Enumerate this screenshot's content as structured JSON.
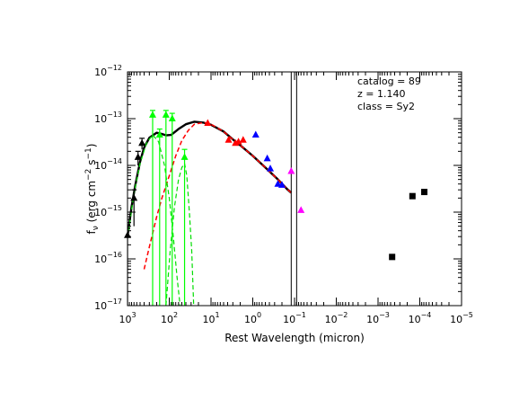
{
  "chart_data": {
    "type": "scatter",
    "title": "",
    "xlabel": "Rest Wavelength (micron)",
    "ylabel_parts": {
      "prefix": "f",
      "sub": "ν",
      "mid": " (erg cm",
      "sup1": "−2",
      "mid2": " s",
      "sup2": "−1",
      "suffix": ")"
    },
    "x_scale": "log-reversed",
    "y_scale": "log",
    "xlim": [
      1000,
      1e-05
    ],
    "ylim": [
      1e-17,
      1e-12
    ],
    "x_ticks": [
      {
        "value": 1000,
        "base": "10",
        "exp": "3"
      },
      {
        "value": 100,
        "base": "10",
        "exp": "2"
      },
      {
        "value": 10,
        "base": "10",
        "exp": "1"
      },
      {
        "value": 1,
        "base": "10",
        "exp": "0"
      },
      {
        "value": 0.1,
        "base": "10",
        "exp": "−1"
      },
      {
        "value": 0.01,
        "base": "10",
        "exp": "−2"
      },
      {
        "value": 0.001,
        "base": "10",
        "exp": "−3"
      },
      {
        "value": 0.0001,
        "base": "10",
        "exp": "−4"
      },
      {
        "value": 1e-05,
        "base": "10",
        "exp": "−5"
      }
    ],
    "y_ticks": [
      {
        "value": 1e-17,
        "base": "10",
        "exp": "−17"
      },
      {
        "value": 1e-16,
        "base": "10",
        "exp": "−16"
      },
      {
        "value": 1e-15,
        "base": "10",
        "exp": "−15"
      },
      {
        "value": 1e-14,
        "base": "10",
        "exp": "−14"
      },
      {
        "value": 1e-13,
        "base": "10",
        "exp": "−13"
      },
      {
        "value": 1e-12,
        "base": "10",
        "exp": "−12"
      }
    ],
    "annotations": [
      "catalog =  89",
      "z = 1.140",
      "class = Sy2"
    ],
    "vertical_lines": [
      0.12,
      0.089
    ],
    "series": [
      {
        "color": "#000000",
        "marker": "triangle",
        "points": [
          [
            999,
            3.2e-16
          ],
          [
            700,
            2e-15
          ],
          [
            560,
            1.5e-14
          ],
          [
            450,
            3e-14
          ]
        ],
        "errors_low": [
          1e-17,
          5e-16,
          1e-14,
          2.2e-14
        ],
        "errors_high": [
          4.5e-16,
          3e-15,
          2e-14,
          3.8e-14
        ]
      },
      {
        "color": "#00ff00",
        "marker": "triangle",
        "points": [
          [
            250,
            1.2e-13
          ],
          [
            170,
            4.5e-14
          ],
          [
            120,
            1.2e-13
          ],
          [
            85,
            1e-13
          ],
          [
            43,
            1.5e-14
          ]
        ],
        "errors_low": [
          1e-17,
          1e-17,
          1e-17,
          1e-17,
          1e-17
        ],
        "errors_high": [
          1.5e-13,
          6e-14,
          1.5e-13,
          1.3e-13,
          2.2e-14
        ]
      },
      {
        "color": "#ff0000",
        "marker": "triangle",
        "points": [
          [
            12,
            8e-14
          ],
          [
            3.8,
            3.5e-14
          ],
          [
            2.6,
            3e-14
          ],
          [
            2.2,
            3.2e-14
          ],
          [
            1.7,
            3.5e-14
          ]
        ]
      },
      {
        "color": "#0000ff",
        "marker": "triangle",
        "points": [
          [
            0.85,
            4.5e-14
          ],
          [
            0.45,
            1.4e-14
          ],
          [
            0.38,
            8.5e-15
          ],
          [
            0.25,
            4e-15
          ],
          [
            0.2,
            3.8e-15
          ]
        ]
      },
      {
        "color": "#ff00ff",
        "marker": "triangle",
        "points": [
          [
            0.12,
            7.5e-15
          ],
          [
            0.07,
            1.1e-15
          ]
        ]
      },
      {
        "color": "#000000",
        "marker": "square",
        "points": [
          [
            0.00046,
            1.1e-16
          ],
          [
            0.00015,
            2.2e-15
          ],
          [
            7.8e-05,
            2.7e-15
          ]
        ]
      }
    ],
    "model_curves": [
      {
        "color": "#000000",
        "style": "solid",
        "width": 2.4,
        "points": [
          [
            1000,
            3e-16
          ],
          [
            800,
            1.3e-15
          ],
          [
            650,
            3.8e-15
          ],
          [
            500,
            1.2e-14
          ],
          [
            400,
            2.4e-14
          ],
          [
            300,
            3.9e-14
          ],
          [
            200,
            5e-14
          ],
          [
            150,
            4.7e-14
          ],
          [
            120,
            4.4e-14
          ],
          [
            90,
            4.5e-14
          ],
          [
            60,
            6e-14
          ],
          [
            40,
            7.6e-14
          ],
          [
            25,
            8.6e-14
          ],
          [
            15,
            8.2e-14
          ],
          [
            10,
            7.4e-14
          ],
          [
            5,
            5.3e-14
          ],
          [
            3,
            3.6e-14
          ],
          [
            2,
            2.7e-14
          ],
          [
            1,
            1.6e-14
          ],
          [
            0.5,
            9e-15
          ],
          [
            0.25,
            5e-15
          ],
          [
            0.15,
            3.1e-15
          ],
          [
            0.12,
            2.6e-15
          ]
        ]
      },
      {
        "color": "#ff0000",
        "style": "dashed",
        "width": 1.5,
        "points": [
          [
            400,
            6e-17
          ],
          [
            300,
            1.8e-16
          ],
          [
            200,
            8e-16
          ],
          [
            150,
            2e-15
          ],
          [
            100,
            6e-15
          ],
          [
            70,
            1.6e-14
          ],
          [
            50,
            3.4e-14
          ],
          [
            35,
            5.6e-14
          ],
          [
            25,
            7.6e-14
          ],
          [
            15,
            8.3e-14
          ],
          [
            10,
            7.6e-14
          ],
          [
            5,
            5.3e-14
          ],
          [
            3,
            3.6e-14
          ],
          [
            2,
            2.7e-14
          ],
          [
            1,
            1.6e-14
          ],
          [
            0.5,
            9e-15
          ],
          [
            0.25,
            5e-15
          ],
          [
            0.15,
            3.1e-15
          ],
          [
            0.12,
            2.6e-15
          ]
        ]
      },
      {
        "color": "#00dd00",
        "style": "dashed",
        "width": 1.2,
        "points": [
          [
            1000,
            2.8e-16
          ],
          [
            700,
            2.5e-15
          ],
          [
            500,
            1.1e-14
          ],
          [
            350,
            3e-14
          ],
          [
            250,
            4.5e-14
          ],
          [
            180,
            3.2e-14
          ],
          [
            130,
            1e-14
          ],
          [
            100,
            2e-15
          ],
          [
            80,
            3e-16
          ],
          [
            65,
            4e-17
          ],
          [
            55,
            1e-17
          ]
        ]
      },
      {
        "color": "#00dd00",
        "style": "dashed",
        "width": 1.2,
        "points": [
          [
            120,
            1e-17
          ],
          [
            95,
            1.5e-16
          ],
          [
            75,
            1.3e-15
          ],
          [
            60,
            5e-15
          ],
          [
            50,
            9e-15
          ],
          [
            43,
            1.1e-14
          ],
          [
            38,
            6e-15
          ],
          [
            33,
            1e-15
          ],
          [
            29,
            1.5e-16
          ],
          [
            26,
            1e-17
          ]
        ]
      }
    ]
  }
}
